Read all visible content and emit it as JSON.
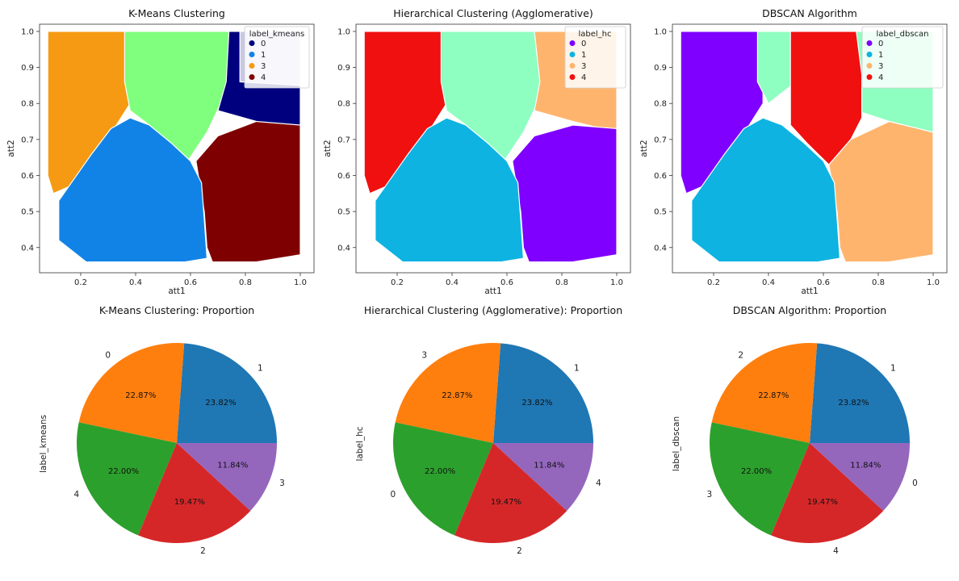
{
  "chart_data": [
    {
      "type": "scatter",
      "title": "K-Means Clustering",
      "xlabel": "att1",
      "ylabel": "att2",
      "xlim": [
        0.05,
        1.05
      ],
      "ylim": [
        0.33,
        1.02
      ],
      "xticks": [
        "0.2",
        "0.4",
        "0.6",
        "0.8",
        "1.0"
      ],
      "yticks": [
        "0.4",
        "0.5",
        "0.6",
        "0.7",
        "0.8",
        "0.9",
        "1.0"
      ],
      "legend": {
        "title": "label_kmeans",
        "position": "top-right",
        "entries": [
          {
            "label": "0",
            "color": "#00007f"
          },
          {
            "label": "1",
            "color": "#1283e6"
          },
          {
            "label": "3",
            "color": "#f59a12"
          },
          {
            "label": "4",
            "color": "#7f0000"
          }
        ]
      },
      "regions": [
        {
          "cluster": "3",
          "color": "#f59a12",
          "polygon": [
            [
              0.08,
              1.0
            ],
            [
              0.38,
              1.0
            ],
            [
              0.38,
              0.8
            ],
            [
              0.33,
              0.74
            ],
            [
              0.25,
              0.66
            ],
            [
              0.16,
              0.57
            ],
            [
              0.1,
              0.55
            ],
            [
              0.08,
              0.6
            ]
          ]
        },
        {
          "cluster": "2",
          "color": "#80ff7e",
          "polygon": [
            [
              0.36,
              1.0
            ],
            [
              0.74,
              1.0
            ],
            [
              0.74,
              0.88
            ],
            [
              0.71,
              0.8
            ],
            [
              0.66,
              0.72
            ],
            [
              0.59,
              0.64
            ],
            [
              0.53,
              0.68
            ],
            [
              0.45,
              0.74
            ],
            [
              0.38,
              0.78
            ],
            [
              0.36,
              0.86
            ]
          ]
        },
        {
          "cluster": "0",
          "color": "#00007f",
          "polygon": [
            [
              0.74,
              1.0
            ],
            [
              1.0,
              1.0
            ],
            [
              1.0,
              0.72
            ],
            [
              0.84,
              0.75
            ],
            [
              0.7,
              0.78
            ],
            [
              0.73,
              0.86
            ]
          ]
        },
        {
          "cluster": "0",
          "color": "#c8c8e6",
          "polygon": [
            [
              0.78,
              1.0
            ],
            [
              1.0,
              1.0
            ],
            [
              1.0,
              0.85
            ],
            [
              0.78,
              0.86
            ]
          ]
        },
        {
          "cluster": "4",
          "color": "#7f0000",
          "polygon": [
            [
              1.0,
              0.74
            ],
            [
              0.84,
              0.75
            ],
            [
              0.7,
              0.71
            ],
            [
              0.62,
              0.64
            ],
            [
              0.65,
              0.5
            ],
            [
              0.66,
              0.4
            ],
            [
              0.68,
              0.36
            ],
            [
              0.84,
              0.36
            ],
            [
              1.0,
              0.38
            ]
          ]
        },
        {
          "cluster": "1",
          "color": "#1283e6",
          "polygon": [
            [
              0.12,
              0.53
            ],
            [
              0.24,
              0.66
            ],
            [
              0.31,
              0.73
            ],
            [
              0.38,
              0.76
            ],
            [
              0.45,
              0.74
            ],
            [
              0.53,
              0.69
            ],
            [
              0.6,
              0.64
            ],
            [
              0.64,
              0.58
            ],
            [
              0.65,
              0.48
            ],
            [
              0.66,
              0.37
            ],
            [
              0.58,
              0.36
            ],
            [
              0.4,
              0.36
            ],
            [
              0.22,
              0.36
            ],
            [
              0.12,
              0.42
            ]
          ]
        }
      ]
    },
    {
      "type": "scatter",
      "title": "Hierarchical Clustering (Agglomerative)",
      "xlabel": "att1",
      "ylabel": "att2",
      "xlim": [
        0.05,
        1.05
      ],
      "ylim": [
        0.33,
        1.02
      ],
      "xticks": [
        "0.2",
        "0.4",
        "0.6",
        "0.8",
        "1.0"
      ],
      "yticks": [
        "0.4",
        "0.5",
        "0.6",
        "0.7",
        "0.8",
        "0.9",
        "1.0"
      ],
      "legend": {
        "title": "label_hc",
        "position": "top-right",
        "entries": [
          {
            "label": "0",
            "color": "#7f00ff"
          },
          {
            "label": "1",
            "color": "#0eb3e1"
          },
          {
            "label": "3",
            "color": "#ffb46e"
          },
          {
            "label": "4",
            "color": "#f01010"
          }
        ]
      },
      "regions": [
        {
          "cluster": "4",
          "color": "#f01010",
          "polygon": [
            [
              0.08,
              1.0
            ],
            [
              0.38,
              1.0
            ],
            [
              0.38,
              0.8
            ],
            [
              0.33,
              0.74
            ],
            [
              0.25,
              0.66
            ],
            [
              0.16,
              0.57
            ],
            [
              0.1,
              0.55
            ],
            [
              0.08,
              0.6
            ]
          ]
        },
        {
          "cluster": "2",
          "color": "#8effc0",
          "polygon": [
            [
              0.36,
              1.0
            ],
            [
              0.74,
              1.0
            ],
            [
              0.74,
              0.88
            ],
            [
              0.71,
              0.8
            ],
            [
              0.66,
              0.72
            ],
            [
              0.59,
              0.64
            ],
            [
              0.53,
              0.68
            ],
            [
              0.45,
              0.74
            ],
            [
              0.38,
              0.78
            ],
            [
              0.36,
              0.86
            ]
          ]
        },
        {
          "cluster": "3",
          "color": "#ffb46e",
          "polygon": [
            [
              0.7,
              1.0
            ],
            [
              1.0,
              1.0
            ],
            [
              1.0,
              0.72
            ],
            [
              0.84,
              0.75
            ],
            [
              0.7,
              0.78
            ],
            [
              0.72,
              0.86
            ]
          ]
        },
        {
          "cluster": "0",
          "color": "#7f00ff",
          "polygon": [
            [
              1.0,
              0.73
            ],
            [
              0.84,
              0.74
            ],
            [
              0.7,
              0.71
            ],
            [
              0.62,
              0.64
            ],
            [
              0.65,
              0.5
            ],
            [
              0.66,
              0.4
            ],
            [
              0.68,
              0.36
            ],
            [
              0.84,
              0.36
            ],
            [
              1.0,
              0.38
            ]
          ]
        },
        {
          "cluster": "1",
          "color": "#0eb3e1",
          "polygon": [
            [
              0.12,
              0.53
            ],
            [
              0.24,
              0.66
            ],
            [
              0.31,
              0.73
            ],
            [
              0.38,
              0.76
            ],
            [
              0.45,
              0.74
            ],
            [
              0.53,
              0.69
            ],
            [
              0.6,
              0.64
            ],
            [
              0.64,
              0.58
            ],
            [
              0.65,
              0.48
            ],
            [
              0.66,
              0.37
            ],
            [
              0.58,
              0.36
            ],
            [
              0.4,
              0.36
            ],
            [
              0.22,
              0.36
            ],
            [
              0.12,
              0.42
            ]
          ]
        }
      ]
    },
    {
      "type": "scatter",
      "title": "DBSCAN Algorithm",
      "xlabel": "att1",
      "ylabel": "att2",
      "xlim": [
        0.05,
        1.05
      ],
      "ylim": [
        0.33,
        1.02
      ],
      "xticks": [
        "0.2",
        "0.4",
        "0.6",
        "0.8",
        "1.0"
      ],
      "yticks": [
        "0.4",
        "0.5",
        "0.6",
        "0.7",
        "0.8",
        "0.9",
        "1.0"
      ],
      "legend": {
        "title": "label_dbscan",
        "position": "top-right",
        "entries": [
          {
            "label": "0",
            "color": "#7f00ff"
          },
          {
            "label": "1",
            "color": "#0eb3e1"
          },
          {
            "label": "3",
            "color": "#ffb46e"
          },
          {
            "label": "4",
            "color": "#f01010"
          }
        ]
      },
      "regions": [
        {
          "cluster": "0",
          "color": "#7f00ff",
          "polygon": [
            [
              0.08,
              1.0
            ],
            [
              0.38,
              1.0
            ],
            [
              0.38,
              0.8
            ],
            [
              0.33,
              0.74
            ],
            [
              0.25,
              0.66
            ],
            [
              0.16,
              0.57
            ],
            [
              0.1,
              0.55
            ],
            [
              0.08,
              0.6
            ]
          ]
        },
        {
          "cluster": "2",
          "color": "#8effc0",
          "polygon": [
            [
              0.36,
              1.0
            ],
            [
              1.0,
              1.0
            ],
            [
              1.0,
              0.72
            ],
            [
              0.84,
              0.75
            ],
            [
              0.72,
              0.78
            ],
            [
              0.62,
              0.86
            ],
            [
              0.5,
              0.86
            ],
            [
              0.4,
              0.8
            ],
            [
              0.36,
              0.86
            ]
          ]
        },
        {
          "cluster": "4",
          "color": "#f01010",
          "polygon": [
            [
              0.48,
              1.0
            ],
            [
              0.72,
              1.0
            ],
            [
              0.74,
              0.88
            ],
            [
              0.74,
              0.76
            ],
            [
              0.7,
              0.7
            ],
            [
              0.62,
              0.63
            ],
            [
              0.54,
              0.69
            ],
            [
              0.48,
              0.74
            ],
            [
              0.48,
              0.86
            ]
          ]
        },
        {
          "cluster": "3",
          "color": "#ffb46e",
          "polygon": [
            [
              1.0,
              0.72
            ],
            [
              0.84,
              0.75
            ],
            [
              0.7,
              0.7
            ],
            [
              0.62,
              0.63
            ],
            [
              0.65,
              0.5
            ],
            [
              0.66,
              0.4
            ],
            [
              0.68,
              0.36
            ],
            [
              0.84,
              0.36
            ],
            [
              1.0,
              0.38
            ]
          ]
        },
        {
          "cluster": "1",
          "color": "#0eb3e1",
          "polygon": [
            [
              0.12,
              0.53
            ],
            [
              0.24,
              0.66
            ],
            [
              0.31,
              0.73
            ],
            [
              0.38,
              0.76
            ],
            [
              0.45,
              0.74
            ],
            [
              0.53,
              0.69
            ],
            [
              0.6,
              0.64
            ],
            [
              0.64,
              0.58
            ],
            [
              0.65,
              0.48
            ],
            [
              0.66,
              0.37
            ],
            [
              0.58,
              0.36
            ],
            [
              0.4,
              0.36
            ],
            [
              0.22,
              0.36
            ],
            [
              0.12,
              0.42
            ]
          ]
        }
      ]
    },
    {
      "type": "pie",
      "title": "K-Means Clustering: Proportion",
      "ylabel": "label_kmeans",
      "slices": [
        {
          "label": "1",
          "value": 23.82,
          "pct_label": "23.82%",
          "color": "#1f77b4"
        },
        {
          "label": "0",
          "value": 22.87,
          "pct_label": "22.87%",
          "color": "#ff7f0e"
        },
        {
          "label": "4",
          "value": 22.0,
          "pct_label": "22.00%",
          "color": "#2ca02c"
        },
        {
          "label": "2",
          "value": 19.47,
          "pct_label": "19.47%",
          "color": "#d62728"
        },
        {
          "label": "3",
          "value": 11.84,
          "pct_label": "11.84%",
          "color": "#9467bd"
        }
      ]
    },
    {
      "type": "pie",
      "title": "Hierarchical Clustering (Agglomerative): Proportion",
      "ylabel": "label_hc",
      "slices": [
        {
          "label": "1",
          "value": 23.82,
          "pct_label": "23.82%",
          "color": "#1f77b4"
        },
        {
          "label": "3",
          "value": 22.87,
          "pct_label": "22.87%",
          "color": "#ff7f0e"
        },
        {
          "label": "0",
          "value": 22.0,
          "pct_label": "22.00%",
          "color": "#2ca02c"
        },
        {
          "label": "2",
          "value": 19.47,
          "pct_label": "19.47%",
          "color": "#d62728"
        },
        {
          "label": "4",
          "value": 11.84,
          "pct_label": "11.84%",
          "color": "#9467bd"
        }
      ]
    },
    {
      "type": "pie",
      "title": "DBSCAN Algorithm: Proportion",
      "ylabel": "label_dbscan",
      "slices": [
        {
          "label": "1",
          "value": 23.82,
          "pct_label": "23.82%",
          "color": "#1f77b4"
        },
        {
          "label": "2",
          "value": 22.87,
          "pct_label": "22.87%",
          "color": "#ff7f0e"
        },
        {
          "label": "3",
          "value": 22.0,
          "pct_label": "22.00%",
          "color": "#2ca02c"
        },
        {
          "label": "4",
          "value": 19.47,
          "pct_label": "19.47%",
          "color": "#d62728"
        },
        {
          "label": "0",
          "value": 11.84,
          "pct_label": "11.84%",
          "color": "#9467bd"
        }
      ]
    }
  ]
}
